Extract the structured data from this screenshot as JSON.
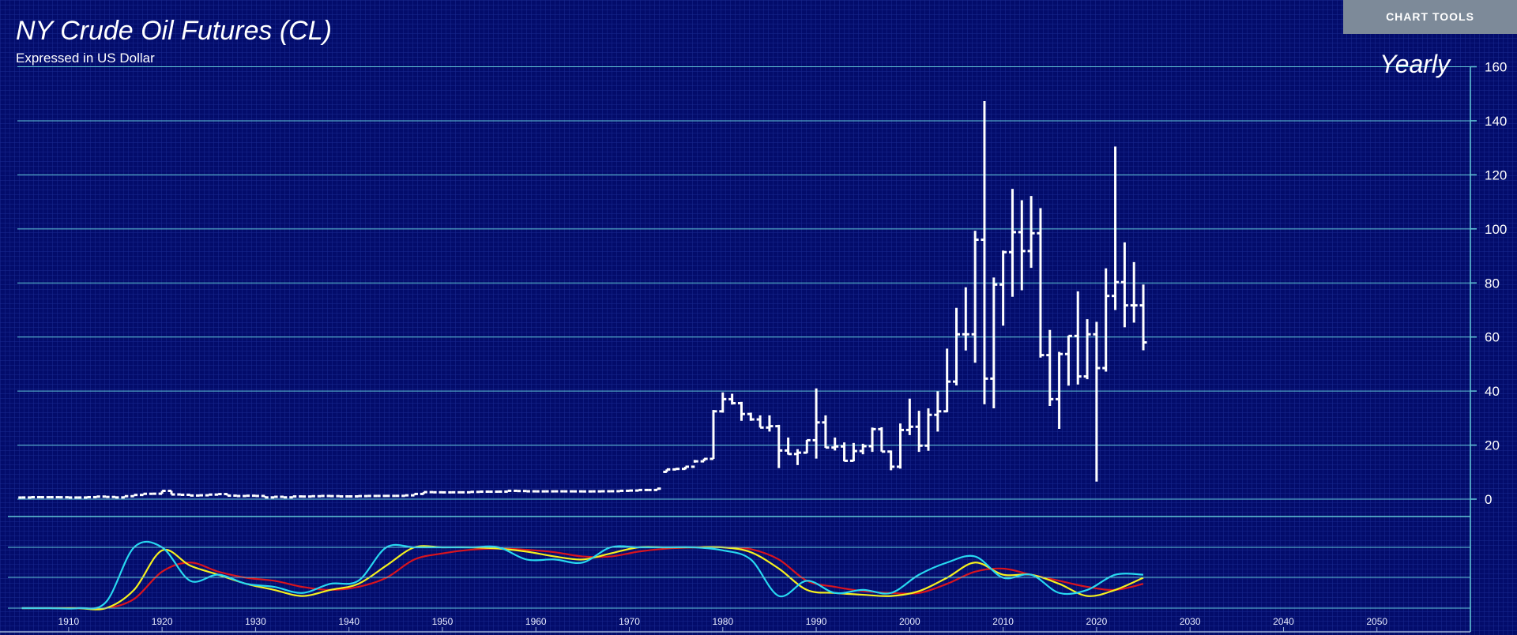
{
  "ui": {
    "button": "CHART TOOLS"
  },
  "chart_data": [
    {
      "type": "ohlc",
      "title": "NY Crude Oil Futures (CL)",
      "subtitle": "Expressed in US Dollar",
      "annotation": "Yearly",
      "color": "#ffffff",
      "grid": true,
      "grid_color": "#63c9d8",
      "xlim": [
        1903.5,
        2060
      ],
      "xticks": [
        1910,
        1920,
        1930,
        1940,
        1950,
        1960,
        1970,
        1980,
        1990,
        2000,
        2010,
        2020,
        2030,
        2040,
        2050
      ],
      "ylim": [
        0,
        160
      ],
      "yticks": [
        0,
        20,
        40,
        60,
        80,
        100,
        120,
        140,
        160
      ],
      "x": [
        1905,
        1906,
        1907,
        1908,
        1909,
        1910,
        1911,
        1912,
        1913,
        1914,
        1915,
        1916,
        1917,
        1918,
        1919,
        1920,
        1921,
        1922,
        1923,
        1924,
        1925,
        1926,
        1927,
        1928,
        1929,
        1930,
        1931,
        1932,
        1933,
        1934,
        1935,
        1936,
        1937,
        1938,
        1939,
        1940,
        1941,
        1942,
        1943,
        1944,
        1945,
        1946,
        1947,
        1948,
        1949,
        1950,
        1951,
        1952,
        1953,
        1954,
        1955,
        1956,
        1957,
        1958,
        1959,
        1960,
        1961,
        1962,
        1963,
        1964,
        1965,
        1966,
        1967,
        1968,
        1969,
        1970,
        1971,
        1972,
        1973,
        1974,
        1975,
        1976,
        1977,
        1978,
        1979,
        1980,
        1981,
        1982,
        1983,
        1984,
        1985,
        1986,
        1987,
        1988,
        1989,
        1990,
        1991,
        1992,
        1993,
        1994,
        1995,
        1996,
        1997,
        1998,
        1999,
        2000,
        2001,
        2002,
        2003,
        2004,
        2005,
        2006,
        2007,
        2008,
        2009,
        2010,
        2011,
        2012,
        2013,
        2014,
        2015,
        2016,
        2017,
        2018,
        2019,
        2020,
        2021,
        2022,
        2023,
        2024,
        2025
      ],
      "open": [
        0.6,
        0.62,
        0.73,
        0.72,
        0.72,
        0.7,
        0.61,
        0.61,
        0.74,
        0.95,
        0.81,
        0.64,
        1.1,
        1.56,
        1.98,
        2.01,
        3.07,
        1.73,
        1.61,
        1.34,
        1.43,
        1.68,
        1.88,
        1.3,
        1.17,
        1.27,
        1.19,
        0.65,
        0.87,
        0.67,
        1.0,
        0.97,
        1.09,
        1.18,
        1.13,
        1.02,
        1.02,
        1.14,
        1.19,
        1.2,
        1.21,
        1.22,
        1.41,
        1.93,
        2.6,
        2.54,
        2.51,
        2.53,
        2.53,
        2.68,
        2.78,
        2.77,
        2.79,
        3.09,
        3.01,
        2.9,
        2.88,
        2.89,
        2.9,
        2.89,
        2.88,
        2.86,
        2.88,
        2.92,
        2.94,
        3.09,
        3.18,
        3.39,
        3.39,
        10.1,
        11,
        11.2,
        12,
        14,
        14.9,
        32.5,
        37,
        35.5,
        31.5,
        29.5,
        26.5,
        27,
        18,
        16.7,
        17.2,
        21.8,
        28.4,
        19.1,
        19.5,
        14.2,
        17.8,
        19.6,
        25.9,
        17.6,
        12,
        25.6,
        26.8,
        19.8,
        31.2,
        32.5,
        43.5,
        61,
        61,
        96,
        44.6,
        79.4,
        91.4,
        98.8,
        91.8,
        98.4,
        53.3,
        37,
        53.7,
        60.4,
        45.4,
        61,
        48.5,
        75.2,
        80.3,
        71.7,
        71.7
      ],
      "high": [
        0.62,
        0.73,
        0.73,
        0.72,
        0.72,
        0.7,
        0.61,
        0.74,
        0.95,
        0.95,
        0.81,
        1.1,
        1.56,
        1.98,
        2.01,
        3.07,
        3.07,
        1.73,
        1.61,
        1.43,
        1.68,
        1.88,
        1.88,
        1.3,
        1.27,
        1.27,
        1.19,
        0.87,
        0.87,
        1.0,
        1.0,
        1.09,
        1.18,
        1.18,
        1.13,
        1.02,
        1.14,
        1.19,
        1.2,
        1.21,
        1.22,
        1.41,
        1.93,
        2.6,
        2.6,
        2.54,
        2.53,
        2.53,
        2.68,
        2.78,
        2.78,
        2.79,
        3.09,
        3.09,
        3.01,
        2.9,
        2.89,
        2.9,
        2.9,
        2.89,
        2.88,
        2.88,
        2.92,
        2.94,
        3.09,
        3.18,
        3.39,
        3.39,
        3.89,
        11,
        11.5,
        12,
        14.5,
        15,
        33,
        39.5,
        39,
        36,
        32,
        31,
        31,
        27.5,
        22.8,
        18.5,
        21.9,
        41,
        31,
        22.8,
        21,
        20.8,
        20.5,
        26.5,
        26.6,
        18,
        28,
        37.2,
        32.7,
        33.6,
        39.9,
        55.7,
        70.8,
        78.4,
        99.3,
        147.3,
        82,
        92,
        114.8,
        110.6,
        112.2,
        107.7,
        62.6,
        54.5,
        60.5,
        76.9,
        66.6,
        65.6,
        85.4,
        130.5,
        95,
        87.7,
        79.4
      ],
      "low": [
        0.6,
        0.62,
        0.72,
        0.72,
        0.7,
        0.61,
        0.61,
        0.61,
        0.74,
        0.81,
        0.64,
        0.64,
        1.1,
        1.56,
        1.98,
        2.01,
        1.73,
        1.61,
        1.34,
        1.34,
        1.43,
        1.68,
        1.3,
        1.17,
        1.17,
        1.19,
        0.65,
        0.65,
        0.67,
        0.67,
        0.97,
        0.97,
        1.09,
        1.13,
        1.02,
        1.02,
        1.02,
        1.14,
        1.19,
        1.2,
        1.21,
        1.22,
        1.41,
        1.93,
        2.54,
        2.51,
        2.51,
        2.53,
        2.53,
        2.68,
        2.77,
        2.77,
        2.79,
        3.01,
        2.9,
        2.88,
        2.88,
        2.89,
        2.89,
        2.88,
        2.86,
        2.86,
        2.88,
        2.92,
        2.94,
        3.09,
        3.18,
        3.39,
        3.39,
        10,
        11,
        11,
        13.5,
        14,
        14.9,
        32,
        35,
        29,
        29,
        26.5,
        25,
        11.5,
        16.5,
        12.6,
        17,
        15,
        19,
        18,
        14,
        14,
        16.6,
        17.5,
        17.6,
        10.7,
        11.3,
        23.7,
        17.5,
        17.9,
        25,
        32.2,
        42.1,
        55,
        50.5,
        35.1,
        33.6,
        64.2,
        74.9,
        77.3,
        85.6,
        52.4,
        34.5,
        26,
        42,
        42.4,
        44.4,
        6.5,
        47.2,
        70,
        63.6,
        65.3,
        55.1
      ],
      "close": [
        0.62,
        0.73,
        0.72,
        0.72,
        0.7,
        0.61,
        0.61,
        0.74,
        0.95,
        0.81,
        0.64,
        1.1,
        1.56,
        1.98,
        2.01,
        3.07,
        1.73,
        1.61,
        1.34,
        1.43,
        1.68,
        1.88,
        1.3,
        1.17,
        1.27,
        1.19,
        0.65,
        0.87,
        0.67,
        1.0,
        0.97,
        1.09,
        1.18,
        1.13,
        1.02,
        1.02,
        1.14,
        1.19,
        1.2,
        1.21,
        1.22,
        1.41,
        1.93,
        2.6,
        2.54,
        2.51,
        2.53,
        2.53,
        2.68,
        2.78,
        2.77,
        2.79,
        3.09,
        3.01,
        2.9,
        2.88,
        2.89,
        2.9,
        2.89,
        2.88,
        2.86,
        2.88,
        2.92,
        2.94,
        3.09,
        3.18,
        3.39,
        3.39,
        3.89,
        11,
        11.2,
        12,
        14,
        14.9,
        32.5,
        37,
        35.5,
        31.5,
        29.5,
        26.5,
        27,
        18,
        16.7,
        17.2,
        21.8,
        28.4,
        19.1,
        19.5,
        14.2,
        17.8,
        19.6,
        25.9,
        17.6,
        12,
        25.6,
        26.8,
        19.8,
        31.2,
        32.5,
        43.5,
        61,
        61,
        96,
        44.6,
        79.4,
        91.4,
        98.8,
        91.8,
        98.4,
        53.3,
        37,
        53.7,
        60.4,
        45.4,
        61,
        48.5,
        75.2,
        80.3,
        71.7,
        71.7,
        58
      ]
    },
    {
      "type": "line",
      "ylim": [
        0,
        100
      ],
      "x": [
        1905,
        1908,
        1911,
        1914,
        1917,
        1920,
        1923,
        1926,
        1929,
        1932,
        1935,
        1938,
        1941,
        1944,
        1947,
        1950,
        1953,
        1956,
        1959,
        1962,
        1965,
        1968,
        1971,
        1974,
        1977,
        1980,
        1983,
        1986,
        1989,
        1992,
        1995,
        1998,
        2001,
        2004,
        2007,
        2010,
        2013,
        2016,
        2019,
        2022,
        2025
      ],
      "series": [
        {
          "color": "#d8141e",
          "values": [
            0,
            0,
            0,
            0,
            15,
            60,
            75,
            60,
            50,
            45,
            35,
            30,
            35,
            50,
            80,
            90,
            96,
            98,
            96,
            92,
            85,
            85,
            93,
            98,
            100,
            100,
            97,
            80,
            45,
            35,
            28,
            25,
            25,
            40,
            60,
            65,
            55,
            45,
            35,
            30,
            40
          ]
        },
        {
          "color": "#f5f01e",
          "values": [
            0,
            0,
            0,
            0,
            30,
            95,
            70,
            55,
            40,
            30,
            20,
            30,
            40,
            70,
            100,
            100,
            100,
            98,
            93,
            85,
            80,
            90,
            100,
            100,
            100,
            100,
            92,
            65,
            30,
            25,
            22,
            20,
            28,
            50,
            75,
            55,
            55,
            40,
            20,
            30,
            50
          ]
        },
        {
          "color": "#27d8f0",
          "values": [
            0,
            0,
            0,
            10,
            100,
            100,
            45,
            55,
            40,
            35,
            25,
            40,
            45,
            100,
            100,
            100,
            100,
            100,
            80,
            80,
            75,
            100,
            100,
            100,
            100,
            95,
            80,
            20,
            45,
            25,
            30,
            25,
            55,
            75,
            85,
            50,
            55,
            25,
            30,
            55,
            55
          ]
        }
      ]
    }
  ]
}
